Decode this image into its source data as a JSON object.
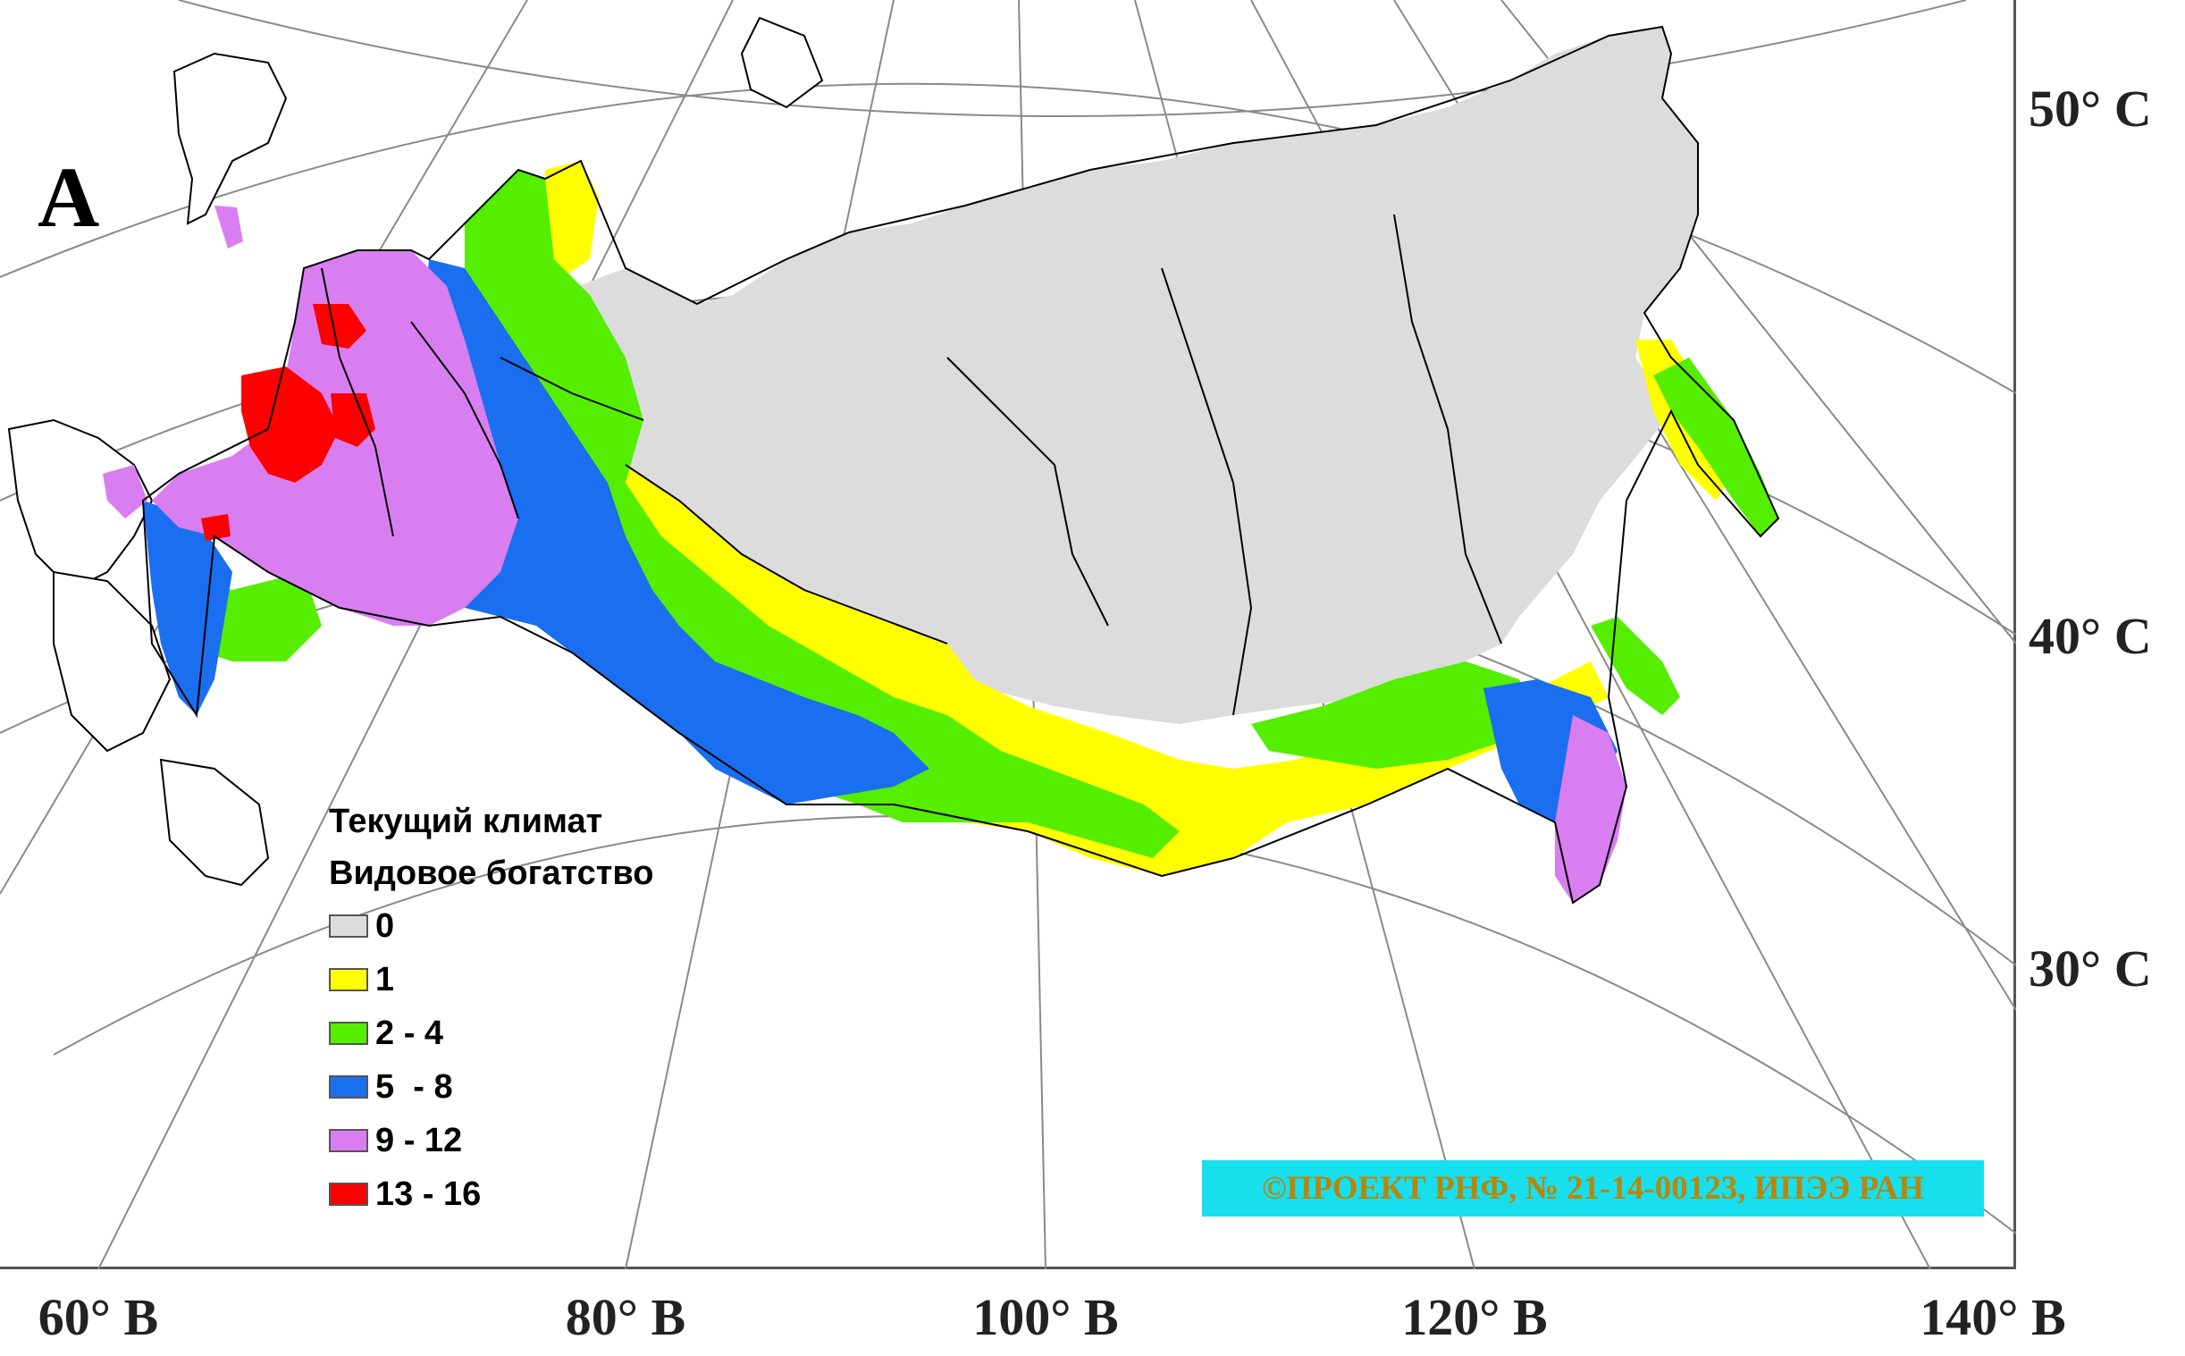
{
  "panel_letter": "A",
  "latitude_labels": [
    "50° С",
    "40° С",
    "30° С"
  ],
  "longitude_labels": [
    "60° В",
    "80° В",
    "100° В",
    "120° В",
    "140° В"
  ],
  "legend": {
    "title_line1": "Текущий климат",
    "title_line2": "Видовое богатство",
    "classes": [
      {
        "label": "0",
        "color": "#dcdcdc"
      },
      {
        "label": "1",
        "color": "#ffff00"
      },
      {
        "label": "2 - 4",
        "color": "#55ee00"
      },
      {
        "label": "5  - 8",
        "color": "#1a6ef0"
      },
      {
        "label": "9 - 12",
        "color": "#d97ef0"
      },
      {
        "label": "13 - 16",
        "color": "#ff0000"
      }
    ]
  },
  "credit": "©ПРОЕКТ РНФ, № 21-14-00123, ИПЭЭ РАН",
  "colors": {
    "graticule": "#8a8a8a",
    "boundary": "#000000",
    "credit_background": "#17dfee",
    "credit_text": "#b8860b"
  }
}
